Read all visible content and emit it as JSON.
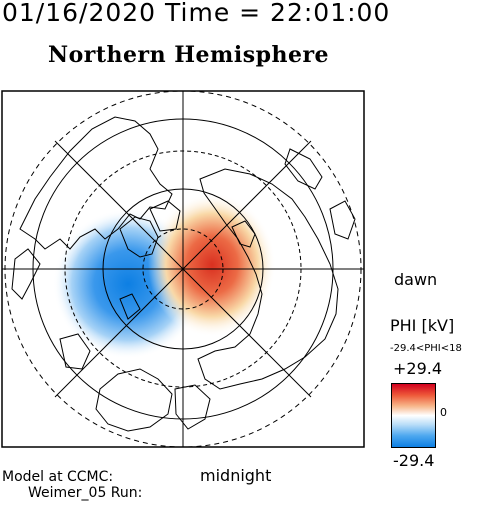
{
  "header": {
    "datetime": "01/16/2020 Time = 22:01:00",
    "title": "Northern Hemisphere"
  },
  "map": {
    "dawn_label": "dawn",
    "midnight_label": "midnight",
    "positive_cell_color": "#d93020",
    "negative_cell_color": "#1a86e8"
  },
  "colorbar": {
    "label": "PHI [kV]",
    "range_text": "-29.4<PHI<18",
    "max_label": "+29.4",
    "zero_label": "0",
    "min_label": "-29.4",
    "colors": [
      "#d2001e",
      "#ffffff",
      "#0d7fe3"
    ]
  },
  "footer": {
    "model_line": "Model at CCMC:",
    "run_line": "Weimer_05 Run:"
  }
}
